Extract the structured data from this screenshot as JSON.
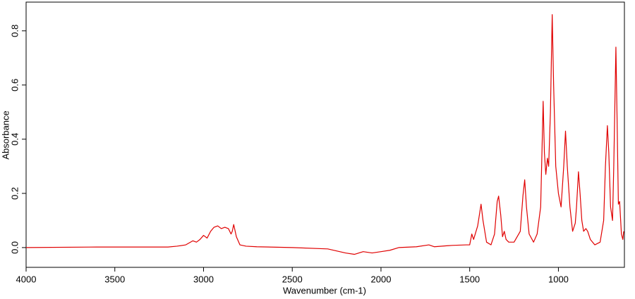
{
  "chart_data": {
    "type": "line",
    "xlabel": "Wavenumber (cm-1)",
    "ylabel": "Absorbance",
    "color": "#e00000",
    "xlim": [
      4000,
      628
    ],
    "ylim": [
      -0.073,
      0.906
    ],
    "xticks": [
      4000,
      3500,
      3000,
      2500,
      2000,
      1500,
      1000
    ],
    "yticks": [
      {
        "value": 0,
        "label": "0.0"
      },
      0.2,
      0.4,
      0.6,
      0.8
    ],
    "x": [
      4000,
      3600,
      3200,
      3150,
      3100,
      3060,
      3040,
      3020,
      3000,
      2980,
      2960,
      2941,
      2920,
      2900,
      2880,
      2860,
      2845,
      2838,
      2830,
      2815,
      2795,
      2760,
      2700,
      2500,
      2300,
      2200,
      2150,
      2100,
      2050,
      2000,
      1950,
      1900,
      1800,
      1730,
      1700,
      1600,
      1520,
      1500,
      1488,
      1478,
      1455,
      1436,
      1425,
      1405,
      1380,
      1360,
      1345,
      1337,
      1325,
      1315,
      1305,
      1295,
      1280,
      1250,
      1215,
      1200,
      1190,
      1180,
      1165,
      1140,
      1120,
      1100,
      1086,
      1079,
      1071,
      1062,
      1055,
      1045,
      1035,
      1027,
      1015,
      1000,
      985,
      970,
      960,
      950,
      935,
      920,
      905,
      898,
      887,
      878,
      868,
      858,
      845,
      835,
      820,
      795,
      765,
      745,
      735,
      724,
      716,
      706,
      695,
      688,
      676,
      670,
      662,
      655,
      645,
      637,
      632
    ],
    "values": [
      0.0,
      0.002,
      0.002,
      0.005,
      0.01,
      0.025,
      0.02,
      0.03,
      0.045,
      0.035,
      0.06,
      0.075,
      0.08,
      0.07,
      0.075,
      0.07,
      0.05,
      0.06,
      0.085,
      0.04,
      0.01,
      0.005,
      0.003,
      0.0,
      -0.005,
      -0.02,
      -0.025,
      -0.015,
      -0.02,
      -0.015,
      -0.01,
      0.0,
      0.003,
      0.01,
      0.003,
      0.008,
      0.01,
      0.01,
      0.05,
      0.03,
      0.08,
      0.16,
      0.1,
      0.02,
      0.01,
      0.05,
      0.17,
      0.19,
      0.12,
      0.04,
      0.06,
      0.03,
      0.02,
      0.02,
      0.06,
      0.19,
      0.25,
      0.15,
      0.05,
      0.02,
      0.05,
      0.15,
      0.54,
      0.35,
      0.27,
      0.33,
      0.3,
      0.5,
      0.86,
      0.6,
      0.3,
      0.2,
      0.15,
      0.3,
      0.43,
      0.3,
      0.15,
      0.06,
      0.09,
      0.15,
      0.28,
      0.2,
      0.1,
      0.06,
      0.07,
      0.06,
      0.03,
      0.01,
      0.02,
      0.1,
      0.3,
      0.45,
      0.35,
      0.15,
      0.1,
      0.3,
      0.74,
      0.5,
      0.16,
      0.17,
      0.05,
      0.03,
      0.06
    ]
  }
}
